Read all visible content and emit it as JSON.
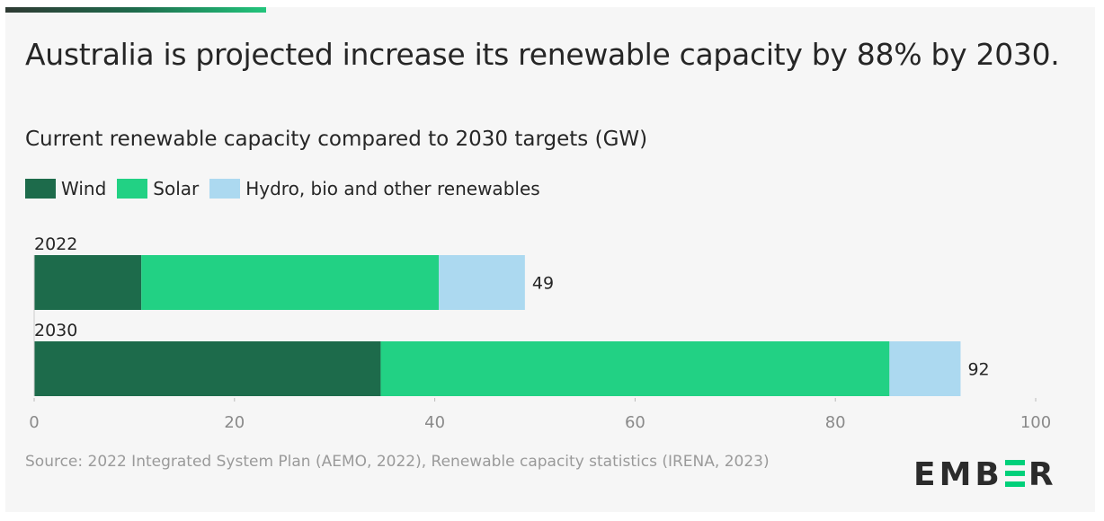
{
  "title": "Australia is projected increase its renewable capacity by 88% by 2030.",
  "subtitle": "Current renewable capacity compared to 2030 targets (GW)",
  "source": "Source: 2022 Integrated System Plan (AEMO, 2022), Renewable capacity statistics (IRENA, 2023)",
  "logo": "EMBER",
  "colors": {
    "wind": "#1d6b4b",
    "solar": "#22d184",
    "hydro": "#acd9f0"
  },
  "chart_data": {
    "type": "bar",
    "orientation": "horizontal",
    "stacked": true,
    "categories": [
      "2022",
      "2030"
    ],
    "series": [
      {
        "name": "Wind",
        "values": [
          10.7,
          34.6
        ]
      },
      {
        "name": "Solar",
        "values": [
          29.7,
          50.8
        ]
      },
      {
        "name": "Hydro, bio and other renewables",
        "values": [
          8.6,
          7.1
        ]
      }
    ],
    "totals": [
      "49",
      "92"
    ],
    "xlim": [
      0,
      100
    ],
    "xticks": [
      "0",
      "20",
      "40",
      "60",
      "80",
      "100"
    ],
    "legend": "top-left",
    "grid": false
  }
}
